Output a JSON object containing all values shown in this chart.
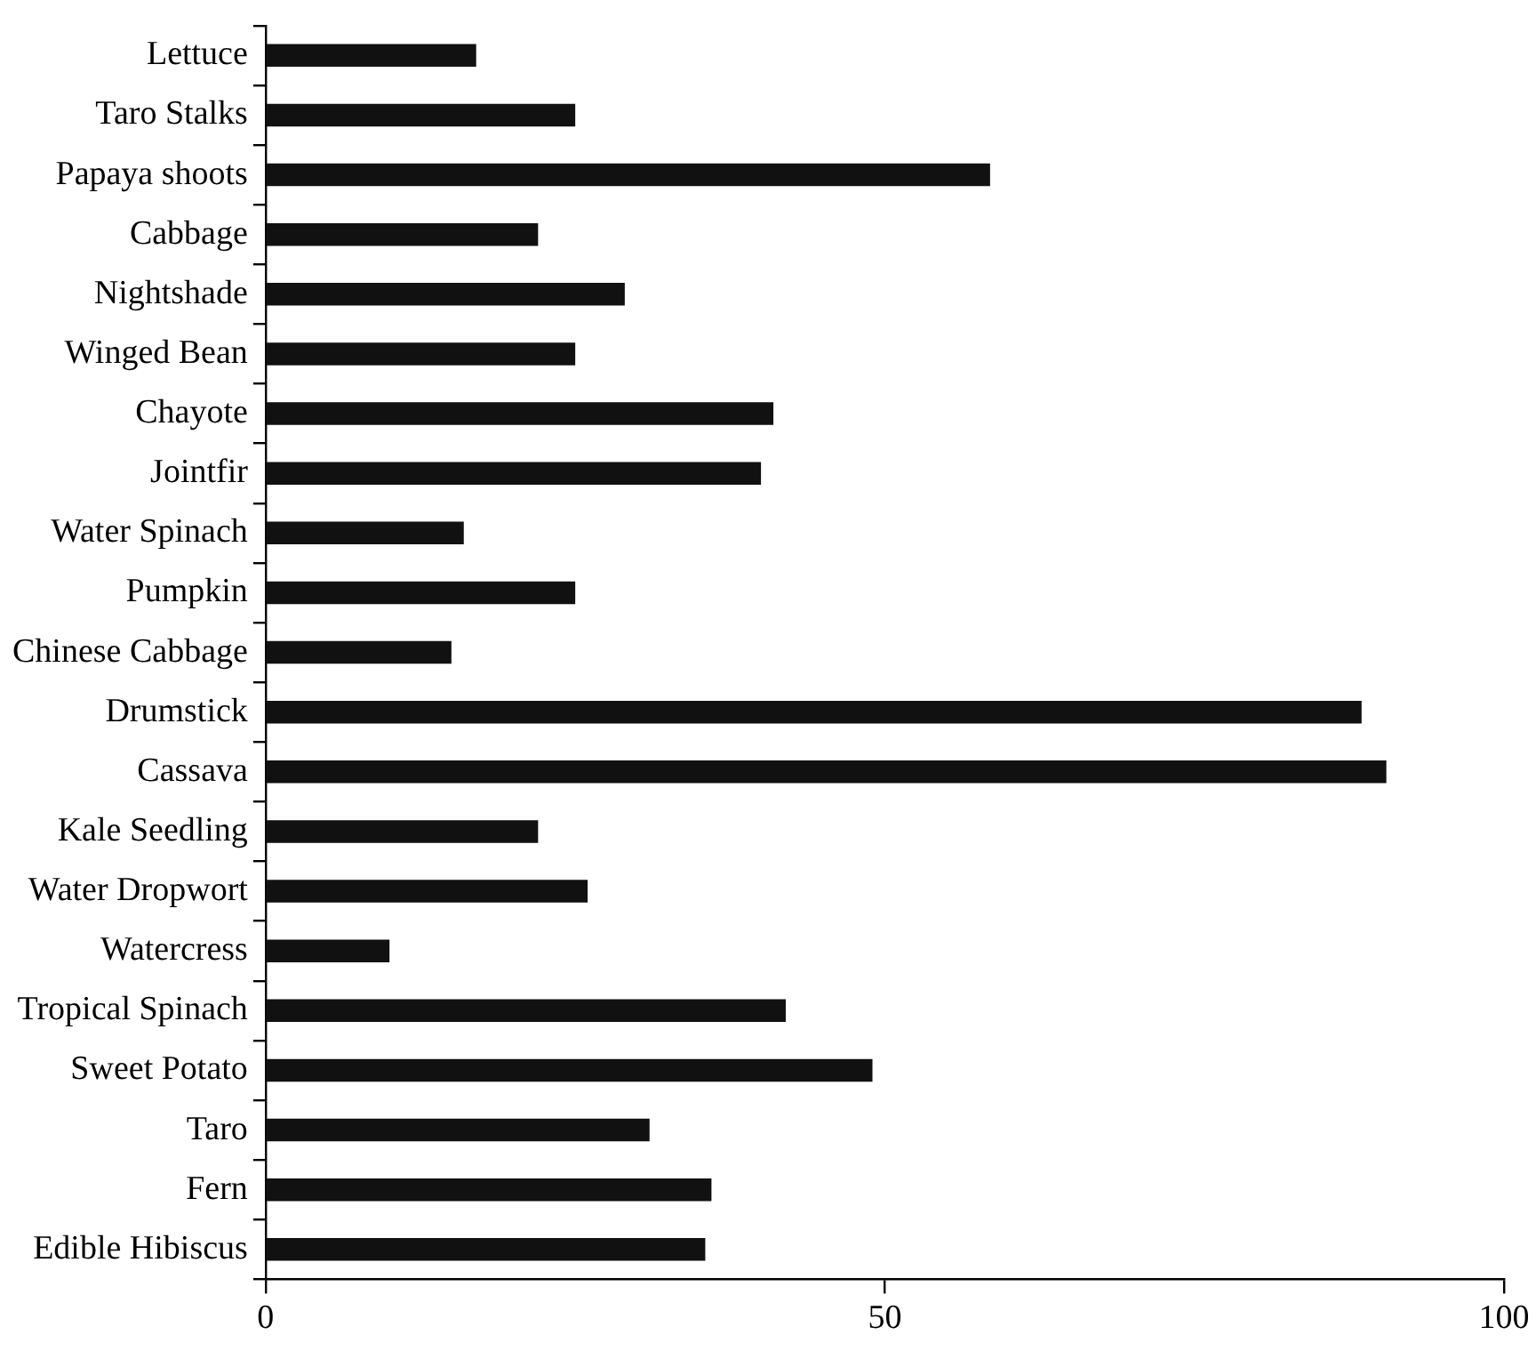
{
  "chart_data": {
    "type": "bar",
    "orientation": "horizontal",
    "categories": [
      "Lettuce",
      "Taro Stalks",
      "Papaya shoots",
      "Cabbage",
      "Nightshade",
      "Winged Bean",
      "Chayote",
      "Jointfir",
      "Water Spinach",
      "Pumpkin",
      "Chinese Cabbage",
      "Drumstick",
      "Cassava",
      "Kale Seedling",
      "Water Dropwort",
      "Watercress",
      "Tropical Spinach",
      "Sweet Potato",
      "Taro",
      "Fern",
      "Edible Hibiscus"
    ],
    "values": [
      17,
      25,
      58.5,
      22,
      29,
      25,
      41,
      40,
      16,
      25,
      15,
      88.5,
      90.5,
      22,
      26,
      10,
      42,
      49,
      31,
      36,
      35.5
    ],
    "color": "#111111",
    "xlim": [
      0,
      100
    ],
    "xticks": [
      0,
      50,
      100
    ],
    "grid": false,
    "legend": false
  }
}
